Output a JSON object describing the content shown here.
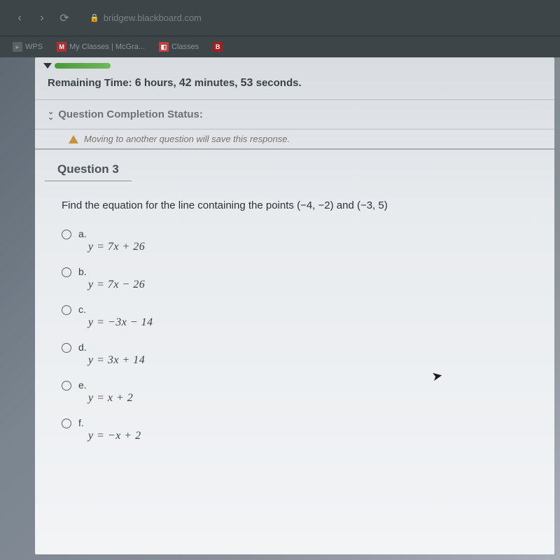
{
  "chrome": {
    "url_host": "bridgew.blackboard.com"
  },
  "bookmarks": {
    "wps": "WPS",
    "myclasses": "My Classes | McGra...",
    "classes": "Classes"
  },
  "timer": {
    "prefix": "Remaining Time: ",
    "hours": "6",
    "hours_label": " hours, ",
    "minutes": "42",
    "minutes_label": " minutes, ",
    "seconds": "53",
    "seconds_label": " seconds."
  },
  "status": {
    "label": "Question Completion Status:"
  },
  "warning": {
    "text": "Moving to another question will save this response."
  },
  "question": {
    "title": "Question 3",
    "prompt": "Find the equation for the line containing the points (−4, −2) and (−3, 5)",
    "options": [
      {
        "letter": "a.",
        "eqn": "y = 7x + 26"
      },
      {
        "letter": "b.",
        "eqn": "y = 7x − 26"
      },
      {
        "letter": "c.",
        "eqn": "y = −3x − 14"
      },
      {
        "letter": "d.",
        "eqn": "y = 3x + 14"
      },
      {
        "letter": "e.",
        "eqn": "y = x + 2"
      },
      {
        "letter": "f.",
        "eqn": "y = −x + 2"
      }
    ]
  }
}
